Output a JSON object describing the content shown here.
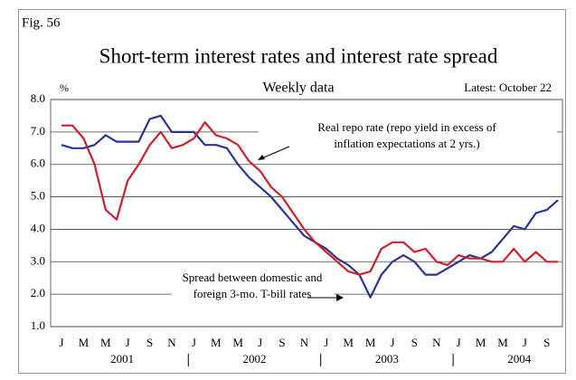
{
  "fig_label": "Fig. 56",
  "chart_data": {
    "type": "line",
    "title": "Short-term interest rates and interest rate spread",
    "subtitle": "Weekly data",
    "note": "Latest: October 22",
    "y_unit": "%",
    "x": [
      "2001-01",
      "2001-02",
      "2001-03",
      "2001-04",
      "2001-05",
      "2001-06",
      "2001-07",
      "2001-08",
      "2001-09",
      "2001-10",
      "2001-11",
      "2001-12",
      "2002-01",
      "2002-02",
      "2002-03",
      "2002-04",
      "2002-05",
      "2002-06",
      "2002-07",
      "2002-08",
      "2002-09",
      "2002-10",
      "2002-11",
      "2002-12",
      "2003-01",
      "2003-02",
      "2003-03",
      "2003-04",
      "2003-05",
      "2003-06",
      "2003-07",
      "2003-08",
      "2003-09",
      "2003-10",
      "2003-11",
      "2003-12",
      "2004-01",
      "2004-02",
      "2004-03",
      "2004-04",
      "2004-05",
      "2004-06",
      "2004-07",
      "2004-08",
      "2004-09",
      "2004-10"
    ],
    "month_labels": [
      "J",
      "M",
      "M",
      "J",
      "S",
      "N",
      "J",
      "M",
      "M",
      "J",
      "S",
      "N",
      "J",
      "M",
      "M",
      "J",
      "S",
      "N",
      "J",
      "M",
      "M",
      "J",
      "S"
    ],
    "year_labels": [
      "2001",
      "2002",
      "2003",
      "2004"
    ],
    "ylim": [
      1,
      8
    ],
    "yticks": [
      {
        "value": 1,
        "label": "1.0"
      },
      {
        "value": 2,
        "label": "2.0"
      },
      {
        "value": 3,
        "label": "3.0"
      },
      {
        "value": 4,
        "label": "4.0"
      },
      {
        "value": 5,
        "label": "5.0"
      },
      {
        "value": 6,
        "label": "6.0"
      },
      {
        "value": 7,
        "label": "7.0"
      },
      {
        "value": 8,
        "label": "8.0"
      }
    ],
    "grid": true,
    "series": [
      {
        "name": "Spread between domestic and foreign 3-mo. T-bill rates",
        "color": "#2b3594",
        "values": [
          6.6,
          6.5,
          6.5,
          6.6,
          6.9,
          6.7,
          6.7,
          6.7,
          7.4,
          7.5,
          7.0,
          7.0,
          7.0,
          6.6,
          6.6,
          6.5,
          6.0,
          5.6,
          5.3,
          5.0,
          4.6,
          4.2,
          3.8,
          3.6,
          3.4,
          3.1,
          2.9,
          2.6,
          1.9,
          2.6,
          3.0,
          3.2,
          3.0,
          2.6,
          2.6,
          2.8,
          3.0,
          3.2,
          3.1,
          3.3,
          3.7,
          4.1,
          4.0,
          4.5,
          4.6,
          4.9
        ]
      },
      {
        "name": "Real repo rate (repo yield in excess of inflation expectations at 2 yrs.)",
        "color": "#d0202e",
        "values": [
          7.2,
          7.2,
          6.8,
          6.0,
          4.6,
          4.3,
          5.5,
          6.0,
          6.6,
          7.0,
          6.5,
          6.6,
          6.8,
          7.3,
          6.9,
          6.8,
          6.6,
          6.1,
          5.8,
          5.3,
          5.0,
          4.5,
          4.0,
          3.6,
          3.3,
          3.0,
          2.7,
          2.6,
          2.7,
          3.4,
          3.6,
          3.6,
          3.3,
          3.4,
          3.0,
          2.9,
          3.2,
          3.1,
          3.1,
          3.0,
          3.0,
          3.4,
          3.0,
          3.3,
          3.0,
          3.0
        ]
      }
    ],
    "annotations": [
      {
        "lines": [
          "Real repo rate (repo yield in excess of",
          "inflation expectations at 2  yrs.)"
        ]
      },
      {
        "lines": [
          "Spread between domestic and",
          "foreign 3-mo. T-bill rates"
        ]
      }
    ]
  }
}
